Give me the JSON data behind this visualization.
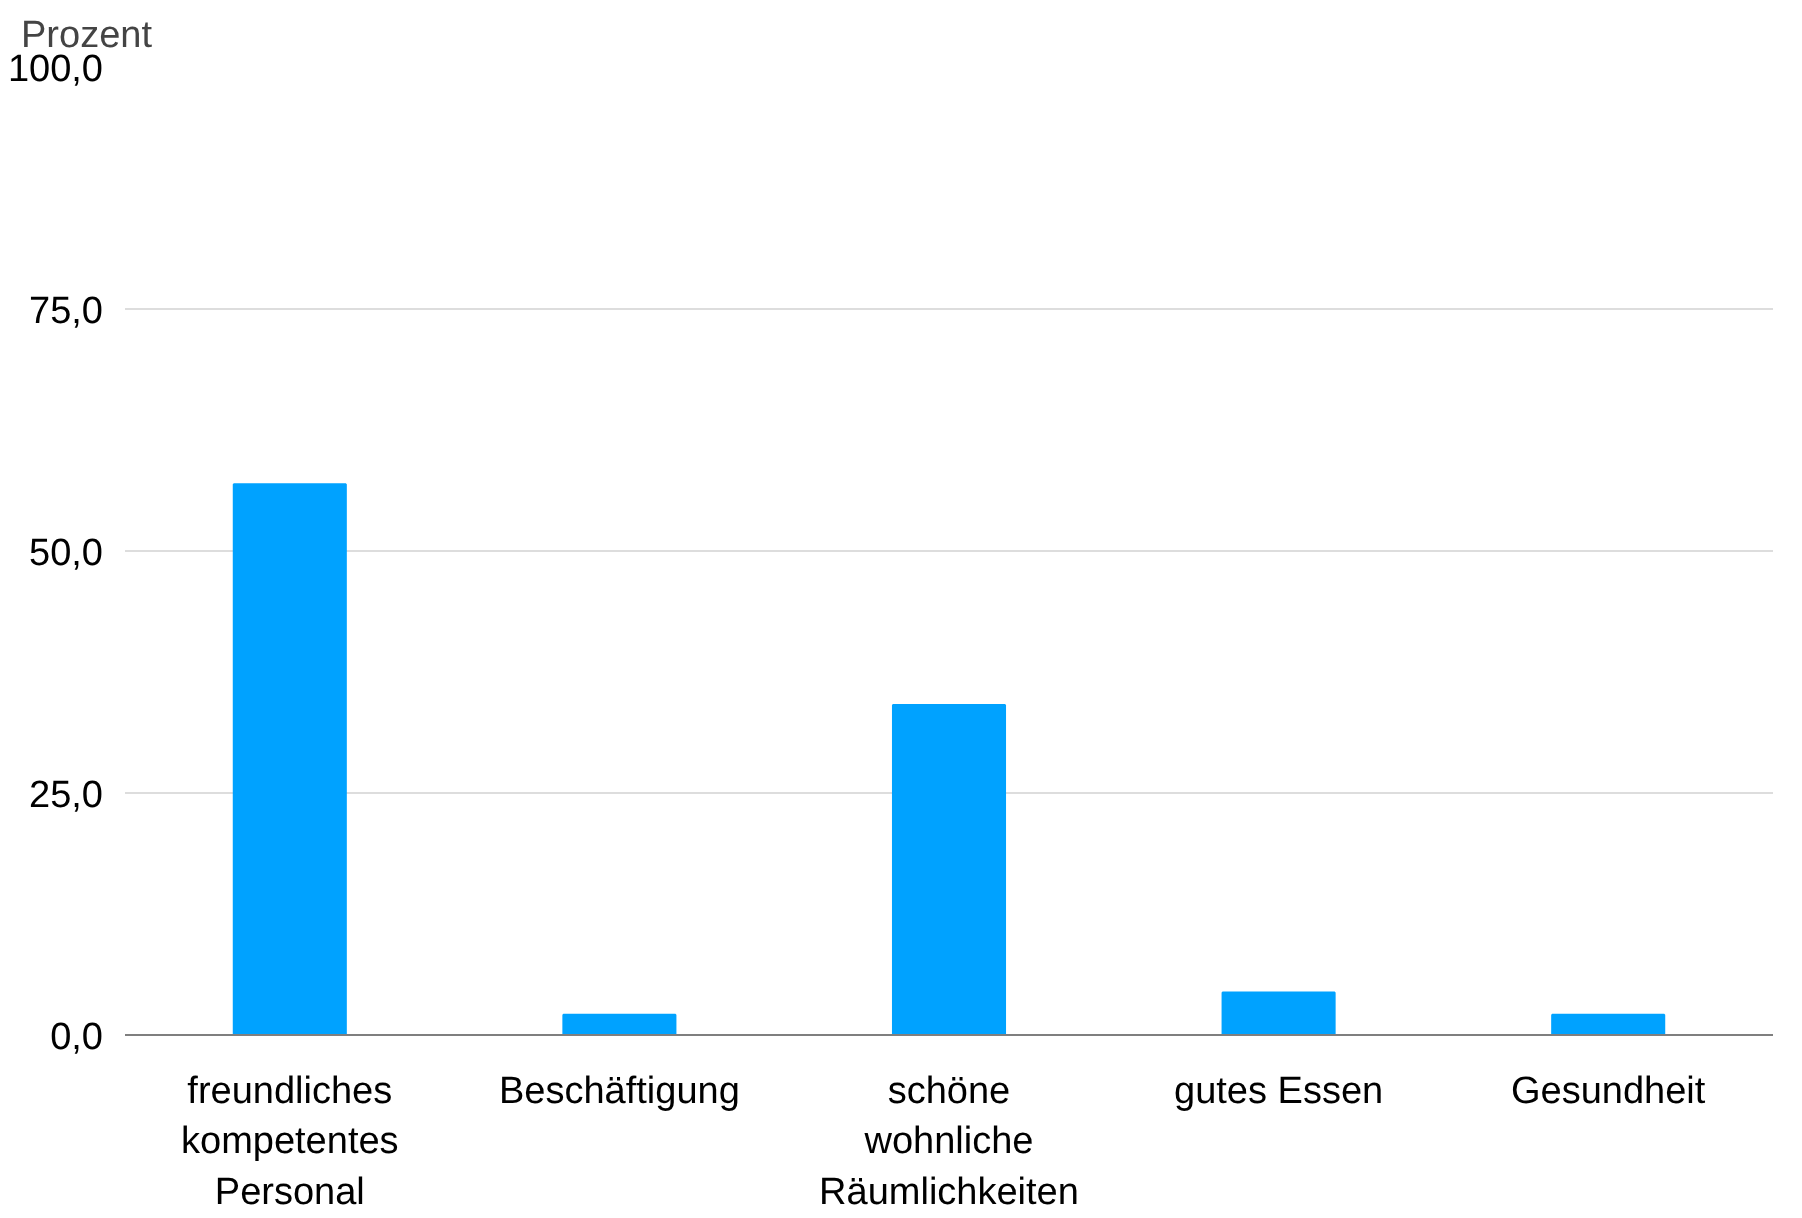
{
  "chart_data": {
    "type": "bar",
    "ylabel": "Prozent",
    "categories": [
      "freundliches kompetentes Personal",
      "Beschäftigung",
      "schöne wohnliche Räumlichkeiten",
      "gutes Essen",
      "Gesundheit"
    ],
    "values": [
      56.9,
      2.1,
      34.1,
      4.4,
      2.1
    ],
    "color": "#00a2ff",
    "ylim": [
      0,
      100
    ],
    "yticks": [
      {
        "value": 0,
        "label": "0,0"
      },
      {
        "value": 25,
        "label": "25,0"
      },
      {
        "value": 50,
        "label": "50,0"
      },
      {
        "value": 75,
        "label": "75,0"
      },
      {
        "value": 100,
        "label": "100,0"
      }
    ],
    "grid": "y"
  }
}
